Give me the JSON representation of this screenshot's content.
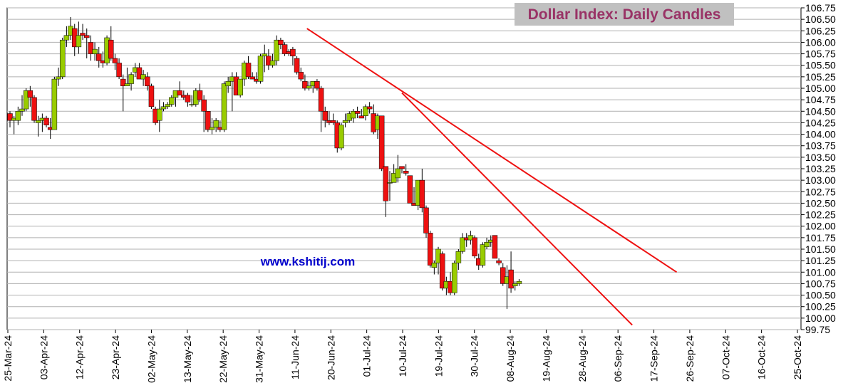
{
  "chart_data": {
    "type": "candlestick",
    "title": "Dollar Index:  Daily Candles",
    "watermark": "www.kshitij.com",
    "ylim": [
      99.75,
      106.75
    ],
    "y_ticks": [
      "106.75",
      "106.50",
      "106.25",
      "106.00",
      "105.75",
      "105.50",
      "105.25",
      "105.00",
      "104.75",
      "104.50",
      "104.25",
      "104.00",
      "103.75",
      "103.50",
      "103.25",
      "103.00",
      "102.75",
      "102.50",
      "102.25",
      "102.00",
      "101.75",
      "101.50",
      "101.25",
      "101.00",
      "100.75",
      "100.50",
      "100.25",
      "100.00",
      "99.75"
    ],
    "x_ticks": [
      "25-Mar-24",
      "03-Apr-24",
      "12-Apr-24",
      "23-Apr-24",
      "02-May-24",
      "13-May-24",
      "22-May-24",
      "31-May-24",
      "11-Jun-24",
      "20-Jun-24",
      "01-Jul-24",
      "10-Jul-24",
      "19-Jul-24",
      "30-Jul-24",
      "08-Aug-24",
      "19-Aug-24",
      "28-Aug-24",
      "06-Sep-24",
      "17-Sep-24",
      "26-Sep-24",
      "07-Oct-24",
      "16-Oct-24",
      "25-Oct-24"
    ],
    "grid": true,
    "y_axis_position": "right",
    "colors": {
      "bullish": "#99cc00",
      "bearish": "#ee1111",
      "wick": "#000000",
      "trendline": "#ee1111",
      "grid": "#b0b0b0",
      "title_bg": "#c0c0c0",
      "title_text": "#993366",
      "watermark": "#0000cc"
    },
    "candles": [
      {
        "o": 104.45,
        "h": 104.5,
        "l": 104.15,
        "c": 104.3
      },
      {
        "o": 104.3,
        "h": 104.4,
        "l": 104.0,
        "c": 104.35
      },
      {
        "o": 104.3,
        "h": 104.6,
        "l": 104.2,
        "c": 104.5
      },
      {
        "o": 104.5,
        "h": 104.85,
        "l": 104.4,
        "c": 104.55
      },
      {
        "o": 104.55,
        "h": 105.0,
        "l": 104.5,
        "c": 104.95
      },
      {
        "o": 104.95,
        "h": 105.05,
        "l": 104.6,
        "c": 104.8
      },
      {
        "o": 104.8,
        "h": 104.85,
        "l": 104.25,
        "c": 104.3
      },
      {
        "o": 104.25,
        "h": 104.4,
        "l": 103.95,
        "c": 104.3
      },
      {
        "o": 104.3,
        "h": 104.45,
        "l": 104.05,
        "c": 104.35
      },
      {
        "o": 104.35,
        "h": 104.4,
        "l": 104.15,
        "c": 104.2
      },
      {
        "o": 104.15,
        "h": 104.35,
        "l": 103.9,
        "c": 104.1
      },
      {
        "o": 104.1,
        "h": 105.25,
        "l": 104.1,
        "c": 105.2
      },
      {
        "o": 105.2,
        "h": 105.45,
        "l": 105.05,
        "c": 105.25
      },
      {
        "o": 105.25,
        "h": 106.1,
        "l": 105.2,
        "c": 106.05
      },
      {
        "o": 106.05,
        "h": 106.35,
        "l": 105.9,
        "c": 106.15
      },
      {
        "o": 106.15,
        "h": 106.55,
        "l": 106.05,
        "c": 106.35
      },
      {
        "o": 106.3,
        "h": 106.4,
        "l": 105.7,
        "c": 105.9
      },
      {
        "o": 105.9,
        "h": 106.45,
        "l": 105.75,
        "c": 106.15
      },
      {
        "o": 106.2,
        "h": 106.4,
        "l": 106.05,
        "c": 106.15
      },
      {
        "o": 106.15,
        "h": 106.3,
        "l": 105.65,
        "c": 106.1
      },
      {
        "o": 106.0,
        "h": 106.15,
        "l": 105.6,
        "c": 105.75
      },
      {
        "o": 105.75,
        "h": 106.0,
        "l": 105.6,
        "c": 105.85
      },
      {
        "o": 105.75,
        "h": 105.9,
        "l": 105.45,
        "c": 105.6
      },
      {
        "o": 105.6,
        "h": 105.8,
        "l": 105.45,
        "c": 105.55
      },
      {
        "o": 105.55,
        "h": 106.15,
        "l": 105.5,
        "c": 106.1
      },
      {
        "o": 106.05,
        "h": 106.35,
        "l": 105.6,
        "c": 105.65
      },
      {
        "o": 105.65,
        "h": 105.75,
        "l": 105.4,
        "c": 105.55
      },
      {
        "o": 105.55,
        "h": 105.65,
        "l": 105.2,
        "c": 105.25
      },
      {
        "o": 105.2,
        "h": 105.3,
        "l": 104.5,
        "c": 105.05
      },
      {
        "o": 105.05,
        "h": 105.45,
        "l": 105.05,
        "c": 105.1
      },
      {
        "o": 105.1,
        "h": 105.35,
        "l": 104.95,
        "c": 105.3
      },
      {
        "o": 105.35,
        "h": 105.55,
        "l": 105.25,
        "c": 105.45
      },
      {
        "o": 105.45,
        "h": 105.55,
        "l": 105.2,
        "c": 105.2
      },
      {
        "o": 105.2,
        "h": 105.4,
        "l": 105.05,
        "c": 105.3
      },
      {
        "o": 105.25,
        "h": 105.35,
        "l": 104.95,
        "c": 105.05
      },
      {
        "o": 105.05,
        "h": 105.1,
        "l": 104.55,
        "c": 104.6
      },
      {
        "o": 104.55,
        "h": 104.6,
        "l": 104.2,
        "c": 104.25
      },
      {
        "o": 104.3,
        "h": 104.75,
        "l": 104.05,
        "c": 104.55
      },
      {
        "o": 104.55,
        "h": 104.7,
        "l": 104.5,
        "c": 104.6
      },
      {
        "o": 104.6,
        "h": 104.7,
        "l": 104.55,
        "c": 104.65
      },
      {
        "o": 104.65,
        "h": 104.85,
        "l": 104.6,
        "c": 104.8
      },
      {
        "o": 104.8,
        "h": 104.95,
        "l": 104.6,
        "c": 104.95
      },
      {
        "o": 104.95,
        "h": 105.15,
        "l": 104.85,
        "c": 104.85
      },
      {
        "o": 104.85,
        "h": 104.95,
        "l": 104.75,
        "c": 104.8
      },
      {
        "o": 104.85,
        "h": 104.9,
        "l": 104.6,
        "c": 104.7
      },
      {
        "o": 104.65,
        "h": 104.85,
        "l": 104.6,
        "c": 104.65
      },
      {
        "o": 104.65,
        "h": 105.0,
        "l": 104.6,
        "c": 104.95
      },
      {
        "o": 104.95,
        "h": 105.1,
        "l": 104.7,
        "c": 104.75
      },
      {
        "o": 104.75,
        "h": 104.85,
        "l": 104.05,
        "c": 104.5
      },
      {
        "o": 104.5,
        "h": 104.5,
        "l": 104.05,
        "c": 104.1
      },
      {
        "o": 104.1,
        "h": 104.35,
        "l": 104.0,
        "c": 104.15
      },
      {
        "o": 104.15,
        "h": 104.35,
        "l": 104.05,
        "c": 104.3
      },
      {
        "o": 104.15,
        "h": 104.3,
        "l": 104.05,
        "c": 104.1
      },
      {
        "o": 104.1,
        "h": 105.15,
        "l": 104.05,
        "c": 105.1
      },
      {
        "o": 105.05,
        "h": 105.25,
        "l": 104.9,
        "c": 105.15
      },
      {
        "o": 105.15,
        "h": 105.35,
        "l": 104.5,
        "c": 105.25
      },
      {
        "o": 105.25,
        "h": 105.35,
        "l": 104.85,
        "c": 104.85
      },
      {
        "o": 104.85,
        "h": 105.2,
        "l": 104.8,
        "c": 105.2
      },
      {
        "o": 105.2,
        "h": 105.6,
        "l": 105.05,
        "c": 105.55
      },
      {
        "o": 105.55,
        "h": 105.7,
        "l": 105.2,
        "c": 105.25
      },
      {
        "o": 105.25,
        "h": 105.35,
        "l": 105.2,
        "c": 105.2
      },
      {
        "o": 105.2,
        "h": 105.35,
        "l": 105.1,
        "c": 105.15
      },
      {
        "o": 105.15,
        "h": 105.75,
        "l": 105.1,
        "c": 105.7
      },
      {
        "o": 105.7,
        "h": 105.95,
        "l": 105.35,
        "c": 105.75
      },
      {
        "o": 105.7,
        "h": 105.85,
        "l": 105.4,
        "c": 105.5
      },
      {
        "o": 105.5,
        "h": 105.75,
        "l": 105.45,
        "c": 105.6
      },
      {
        "o": 105.6,
        "h": 106.15,
        "l": 105.5,
        "c": 106.05
      },
      {
        "o": 106.05,
        "h": 106.1,
        "l": 105.85,
        "c": 105.95
      },
      {
        "o": 105.95,
        "h": 106.0,
        "l": 105.7,
        "c": 105.75
      },
      {
        "o": 105.8,
        "h": 105.85,
        "l": 105.7,
        "c": 105.75
      },
      {
        "o": 105.85,
        "h": 105.9,
        "l": 105.5,
        "c": 105.7
      },
      {
        "o": 105.65,
        "h": 105.7,
        "l": 105.3,
        "c": 105.35
      },
      {
        "o": 105.35,
        "h": 105.45,
        "l": 105.15,
        "c": 105.2
      },
      {
        "o": 105.15,
        "h": 105.3,
        "l": 104.95,
        "c": 105.0
      },
      {
        "o": 105.0,
        "h": 105.15,
        "l": 104.95,
        "c": 105.05
      },
      {
        "o": 105.05,
        "h": 105.15,
        "l": 104.9,
        "c": 105.15
      },
      {
        "o": 105.15,
        "h": 105.2,
        "l": 104.95,
        "c": 105.0
      },
      {
        "o": 105.0,
        "h": 105.05,
        "l": 104.05,
        "c": 104.5
      },
      {
        "o": 104.5,
        "h": 104.6,
        "l": 104.15,
        "c": 104.3
      },
      {
        "o": 104.3,
        "h": 104.5,
        "l": 104.2,
        "c": 104.25
      },
      {
        "o": 104.3,
        "h": 104.45,
        "l": 104.2,
        "c": 104.25
      },
      {
        "o": 104.25,
        "h": 104.3,
        "l": 103.6,
        "c": 103.7
      },
      {
        "o": 103.7,
        "h": 104.25,
        "l": 103.65,
        "c": 104.2
      },
      {
        "o": 104.25,
        "h": 104.45,
        "l": 104.15,
        "c": 104.3
      },
      {
        "o": 104.3,
        "h": 104.5,
        "l": 104.25,
        "c": 104.45
      },
      {
        "o": 104.35,
        "h": 104.55,
        "l": 104.25,
        "c": 104.5
      },
      {
        "o": 104.5,
        "h": 104.6,
        "l": 104.35,
        "c": 104.45
      },
      {
        "o": 104.4,
        "h": 104.55,
        "l": 104.35,
        "c": 104.35
      },
      {
        "o": 104.4,
        "h": 104.65,
        "l": 104.3,
        "c": 104.6
      },
      {
        "o": 104.6,
        "h": 104.7,
        "l": 104.45,
        "c": 104.55
      },
      {
        "o": 104.45,
        "h": 104.65,
        "l": 104.0,
        "c": 104.05
      },
      {
        "o": 104.1,
        "h": 104.45,
        "l": 103.9,
        "c": 104.4
      },
      {
        "o": 104.4,
        "h": 104.4,
        "l": 103.2,
        "c": 103.25
      },
      {
        "o": 103.3,
        "h": 103.3,
        "l": 102.2,
        "c": 102.55
      },
      {
        "o": 102.95,
        "h": 103.2,
        "l": 102.55,
        "c": 102.95
      },
      {
        "o": 102.95,
        "h": 103.35,
        "l": 102.95,
        "c": 103.15
      },
      {
        "o": 103.05,
        "h": 103.55,
        "l": 102.95,
        "c": 103.25
      },
      {
        "o": 103.3,
        "h": 103.3,
        "l": 103.15,
        "c": 103.25
      },
      {
        "o": 103.2,
        "h": 103.35,
        "l": 103.1,
        "c": 103.15
      },
      {
        "o": 103.1,
        "h": 103.1,
        "l": 102.5,
        "c": 102.5
      },
      {
        "o": 102.5,
        "h": 102.85,
        "l": 102.45,
        "c": 102.45
      },
      {
        "o": 102.45,
        "h": 103.0,
        "l": 102.35,
        "c": 103.0
      },
      {
        "o": 103.0,
        "h": 103.25,
        "l": 102.3,
        "c": 102.4
      },
      {
        "o": 102.4,
        "h": 102.45,
        "l": 101.75,
        "c": 101.85
      },
      {
        "o": 101.85,
        "h": 101.9,
        "l": 101.1,
        "c": 101.15
      },
      {
        "o": 101.1,
        "h": 101.25,
        "l": 100.95,
        "c": 101.2
      },
      {
        "o": 101.2,
        "h": 101.55,
        "l": 100.95,
        "c": 101.5
      },
      {
        "o": 101.4,
        "h": 101.45,
        "l": 100.6,
        "c": 100.65
      },
      {
        "o": 100.65,
        "h": 100.9,
        "l": 100.5,
        "c": 100.8
      },
      {
        "o": 100.8,
        "h": 101.0,
        "l": 100.5,
        "c": 100.55
      },
      {
        "o": 100.55,
        "h": 101.25,
        "l": 100.5,
        "c": 101.2
      },
      {
        "o": 101.2,
        "h": 101.5,
        "l": 101.05,
        "c": 101.45
      },
      {
        "o": 101.45,
        "h": 101.85,
        "l": 101.4,
        "c": 101.75
      },
      {
        "o": 101.75,
        "h": 101.85,
        "l": 101.55,
        "c": 101.7
      },
      {
        "o": 101.7,
        "h": 101.9,
        "l": 101.6,
        "c": 101.8
      },
      {
        "o": 101.75,
        "h": 101.8,
        "l": 101.3,
        "c": 101.35
      },
      {
        "o": 101.3,
        "h": 101.4,
        "l": 101.05,
        "c": 101.15
      },
      {
        "o": 101.15,
        "h": 101.65,
        "l": 101.1,
        "c": 101.6
      },
      {
        "o": 101.55,
        "h": 101.75,
        "l": 101.5,
        "c": 101.65
      },
      {
        "o": 101.65,
        "h": 101.8,
        "l": 101.55,
        "c": 101.7
      },
      {
        "o": 101.8,
        "h": 101.8,
        "l": 101.3,
        "c": 101.3
      },
      {
        "o": 101.25,
        "h": 101.3,
        "l": 101.15,
        "c": 101.2
      },
      {
        "o": 101.1,
        "h": 101.2,
        "l": 100.7,
        "c": 100.75
      },
      {
        "o": 100.75,
        "h": 101.15,
        "l": 100.2,
        "c": 100.9
      },
      {
        "o": 101.05,
        "h": 101.45,
        "l": 100.55,
        "c": 100.65
      },
      {
        "o": 100.7,
        "h": 100.8,
        "l": 100.6,
        "c": 100.75
      },
      {
        "o": 100.75,
        "h": 100.85,
        "l": 100.7,
        "c": 100.8
      }
    ],
    "trendlines": [
      {
        "name": "",
        "start": {
          "bar": 73.5,
          "y": 106.3
        },
        "end": {
          "bar": 165,
          "y": 101.0
        }
      },
      {
        "name": "",
        "start": {
          "bar": 97,
          "y": 104.9
        },
        "end": {
          "bar": 154,
          "y": 99.85
        }
      }
    ]
  }
}
